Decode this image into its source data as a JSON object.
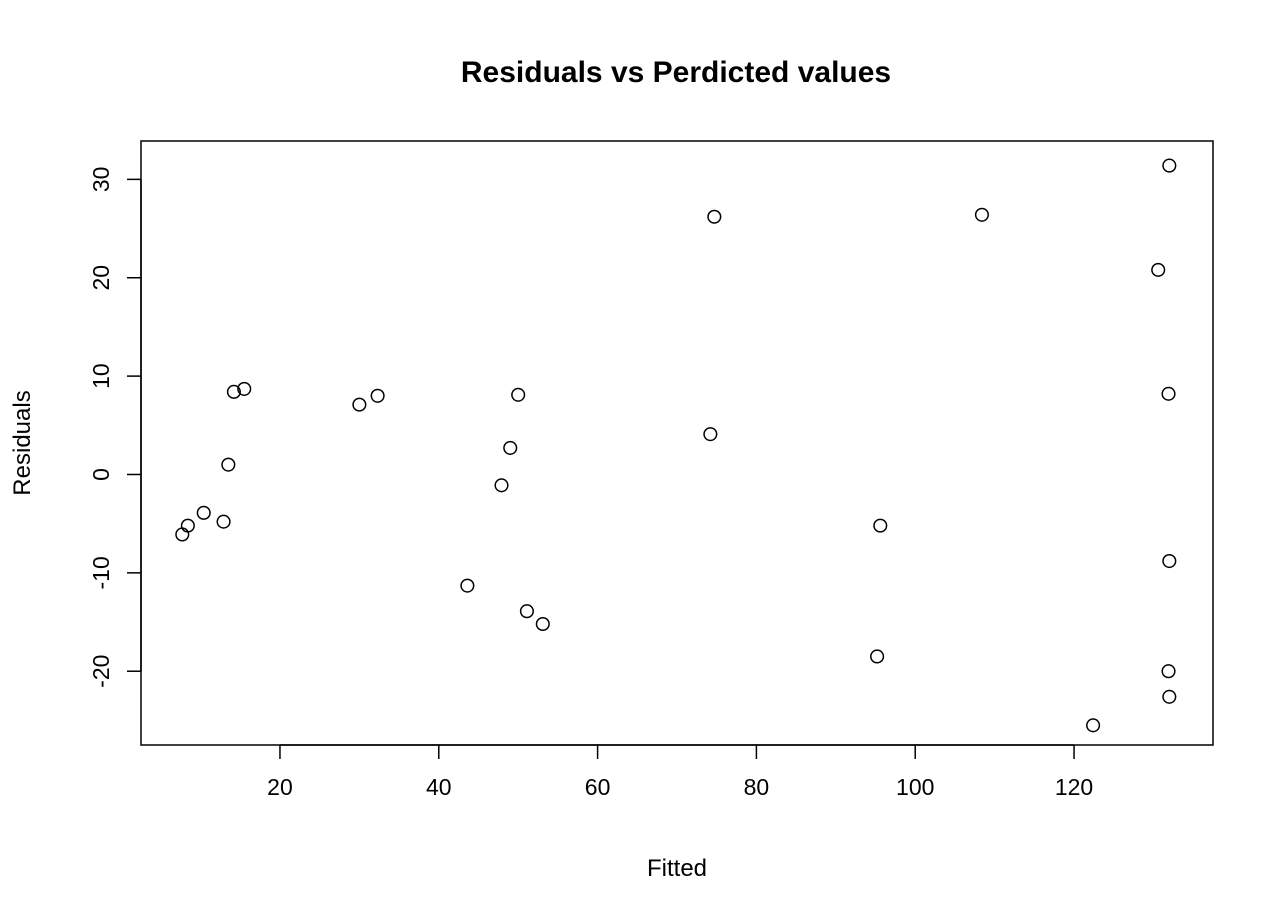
{
  "chart_data": {
    "type": "scatter",
    "title": "Residuals vs Perdicted values",
    "xlabel": "Fitted",
    "ylabel": "Residuals",
    "xlim": [
      2.5,
      137.5
    ],
    "ylim": [
      -27.5,
      33.9
    ],
    "x_ticks": [
      20,
      40,
      60,
      80,
      100,
      120
    ],
    "y_ticks": [
      -20,
      -10,
      0,
      10,
      20,
      30
    ],
    "grid": false,
    "marker": "open-circle",
    "points": [
      {
        "x": 7.7,
        "y": -6.1
      },
      {
        "x": 8.4,
        "y": -5.2
      },
      {
        "x": 10.4,
        "y": -3.9
      },
      {
        "x": 12.9,
        "y": -4.8
      },
      {
        "x": 13.5,
        "y": 1.0
      },
      {
        "x": 14.2,
        "y": 8.4
      },
      {
        "x": 15.5,
        "y": 8.7
      },
      {
        "x": 30.0,
        "y": 7.1
      },
      {
        "x": 32.3,
        "y": 8.0
      },
      {
        "x": 43.6,
        "y": -11.3
      },
      {
        "x": 47.9,
        "y": -1.1
      },
      {
        "x": 49.0,
        "y": 2.7
      },
      {
        "x": 50.0,
        "y": 8.1
      },
      {
        "x": 51.1,
        "y": -13.9
      },
      {
        "x": 53.1,
        "y": -15.2
      },
      {
        "x": 74.2,
        "y": 4.1
      },
      {
        "x": 74.7,
        "y": 26.2
      },
      {
        "x": 95.2,
        "y": -18.5
      },
      {
        "x": 95.6,
        "y": -5.2
      },
      {
        "x": 108.4,
        "y": 26.4
      },
      {
        "x": 122.4,
        "y": -25.5
      },
      {
        "x": 130.6,
        "y": 20.8
      },
      {
        "x": 131.9,
        "y": 8.2
      },
      {
        "x": 131.9,
        "y": -20.0
      },
      {
        "x": 132.0,
        "y": 31.4
      },
      {
        "x": 132.0,
        "y": -8.8
      },
      {
        "x": 132.0,
        "y": -22.6
      }
    ]
  }
}
